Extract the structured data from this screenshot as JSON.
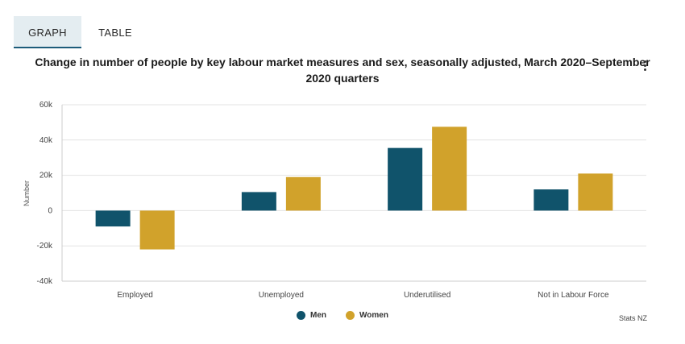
{
  "tabs": [
    {
      "label": "GRAPH",
      "active": true
    },
    {
      "label": "TABLE",
      "active": false
    }
  ],
  "menu_icon": "more-vertical-icon",
  "colors": {
    "men": "#10536b",
    "women": "#d1a22b",
    "grid": "#e3e3e3",
    "tab_active_bg": "#e4edf1",
    "tab_active_border": "#1d5c7a"
  },
  "credit": "Stats NZ",
  "chart_data": {
    "type": "bar",
    "title": "Change in number of people by key labour market measures and sex, seasonally adjusted, March 2020–September 2020 quarters",
    "xlabel": "",
    "ylabel": "Number",
    "ylim": [
      -40000,
      60000
    ],
    "yticks": [
      {
        "value": 60000,
        "label": "60k"
      },
      {
        "value": 40000,
        "label": "40k"
      },
      {
        "value": 20000,
        "label": "20k"
      },
      {
        "value": 0,
        "label": "0"
      },
      {
        "value": -20000,
        "label": "-20k"
      },
      {
        "value": -40000,
        "label": "-40k"
      }
    ],
    "categories": [
      "Employed",
      "Unemployed",
      "Underutilised",
      "Not in Labour Force"
    ],
    "series": [
      {
        "name": "Men",
        "color": "#10536b",
        "values": [
          -9000,
          10500,
          35500,
          12000
        ]
      },
      {
        "name": "Women",
        "color": "#d1a22b",
        "values": [
          -22000,
          19000,
          47500,
          21000
        ]
      }
    ],
    "grid": true,
    "legend": "bottom-center"
  }
}
